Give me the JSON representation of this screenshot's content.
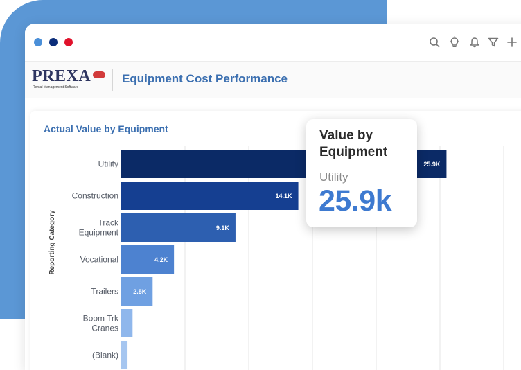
{
  "window": {
    "dots": [
      "#4a8fd8",
      "#0b2d7a",
      "#e0112b"
    ],
    "toolbar_icons": [
      "search-icon",
      "lightbulb-icon",
      "bell-icon",
      "filter-icon",
      "plus-icon"
    ]
  },
  "header": {
    "logo_text": "PREXA",
    "logo_subtext": "Rental Management Software",
    "title": "Equipment Cost Performance"
  },
  "chart_data": {
    "type": "bar",
    "orientation": "horizontal",
    "title": "Actual Value by Equipment",
    "ylabel": "Reporting Category",
    "xlabel": "",
    "categories": [
      "Utility",
      "Construction",
      "Track Equipment",
      "Vocational",
      "Trailers",
      "Boom Trk Cranes",
      "(Blank)"
    ],
    "category_lines": [
      [
        "Utility"
      ],
      [
        "Construction"
      ],
      [
        "Track",
        "Equipment"
      ],
      [
        "Vocational"
      ],
      [
        "Trailers"
      ],
      [
        "Boom Trk",
        "Cranes"
      ],
      [
        "(Blank)"
      ]
    ],
    "values": [
      25900,
      14100,
      9100,
      4200,
      2500,
      900,
      500
    ],
    "value_labels": [
      "25.9K",
      "14.1K",
      "9.1K",
      "4.2K",
      "2.5K",
      "",
      ""
    ],
    "colors": [
      "#0b2a66",
      "#153f91",
      "#2d5fb0",
      "#4d82d0",
      "#6fa0e2",
      "#8fb7ec",
      "#a6c6f0"
    ],
    "xlim": [
      0,
      32000
    ],
    "grid": true
  },
  "tooltip": {
    "title": "Value by Equipment",
    "category": "Utility",
    "value": "25.9k"
  }
}
